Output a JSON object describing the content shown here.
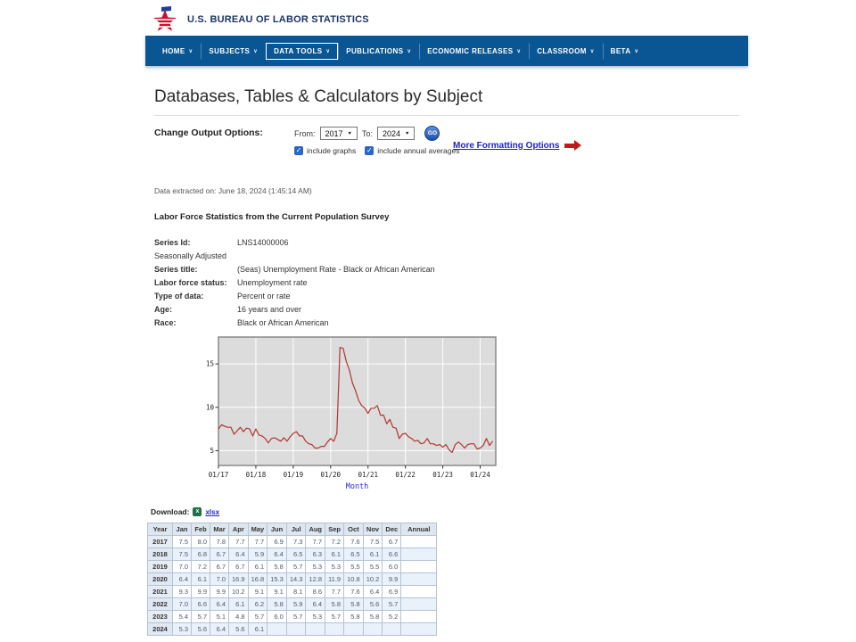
{
  "colors": {
    "nav_bg": "#0a5694",
    "brand_navy": "#1c3665",
    "link_blue": "#2121c8",
    "red_accent": "#c11b17",
    "chart_line": "#b13532",
    "chart_plot_bg": "#dcdcdc",
    "xlabel_blue": "#2a2ad0",
    "table_border": "#b5c3d4"
  },
  "header": {
    "site_title": "U.S. BUREAU OF LABOR STATISTICS"
  },
  "nav": {
    "active": "DATA TOOLS",
    "items": [
      {
        "label": "HOME"
      },
      {
        "label": "SUBJECTS"
      },
      {
        "label": "DATA TOOLS"
      },
      {
        "label": "PUBLICATIONS"
      },
      {
        "label": "ECONOMIC RELEASES"
      },
      {
        "label": "CLASSROOM"
      },
      {
        "label": "BETA"
      }
    ]
  },
  "page": {
    "title": "Databases, Tables & Calculators by Subject"
  },
  "output_options": {
    "label": "Change Output Options:",
    "from_label": "From:",
    "from_value": "2017",
    "to_label": "To:",
    "to_value": "2024",
    "go_label": "GO",
    "checkboxes": [
      {
        "label": "include graphs",
        "checked": true
      },
      {
        "label": "include annual averages",
        "checked": true
      }
    ],
    "more_link": "More Formatting Options"
  },
  "extracted": "Data extracted on: June 18, 2024 (1:45:14 AM)",
  "survey_title": "Labor Force Statistics from the Current Population Survey",
  "series": {
    "rows": [
      {
        "label": "Series Id:",
        "value": "LNS14000006",
        "bold": true
      },
      {
        "label": "Seasonally Adjusted",
        "value": "",
        "bold": false
      },
      {
        "label": "Series title:",
        "value": "(Seas) Unemployment Rate - Black or African American",
        "bold": true
      },
      {
        "label": "Labor force status:",
        "value": "Unemployment rate",
        "bold": true
      },
      {
        "label": "Type of data:",
        "value": "Percent or rate",
        "bold": true
      },
      {
        "label": "Age:",
        "value": "16 years and over",
        "bold": true
      },
      {
        "label": "Race:",
        "value": "Black or African American",
        "bold": true
      }
    ]
  },
  "chart_data": {
    "type": "line",
    "title": "(Seas) Unemployment Rate - Black or African American",
    "xlabel": "Month",
    "ylabel": "",
    "x_start": "2017-01",
    "x_ticks": [
      "01/17",
      "01/18",
      "01/19",
      "01/20",
      "01/21",
      "01/22",
      "01/23",
      "01/24"
    ],
    "y_ticks": [
      5,
      10,
      15
    ],
    "ylim": [
      3.3,
      18.1
    ],
    "grid": true,
    "legend": "none",
    "values": [
      7.5,
      8.0,
      7.8,
      7.7,
      7.7,
      6.9,
      7.3,
      7.7,
      7.2,
      7.6,
      7.5,
      6.7,
      7.5,
      6.8,
      6.7,
      6.4,
      5.9,
      6.4,
      6.5,
      6.3,
      6.1,
      6.5,
      6.1,
      6.6,
      7.0,
      7.2,
      6.7,
      6.7,
      6.1,
      5.8,
      5.7,
      5.3,
      5.3,
      5.5,
      5.5,
      6.0,
      6.4,
      6.1,
      7.0,
      16.9,
      16.8,
      15.3,
      14.3,
      12.8,
      11.9,
      10.8,
      10.2,
      9.9,
      9.3,
      9.9,
      9.9,
      10.2,
      9.1,
      9.1,
      8.1,
      8.6,
      7.7,
      7.6,
      6.4,
      6.9,
      7.0,
      6.6,
      6.4,
      6.1,
      6.2,
      5.8,
      5.9,
      6.4,
      5.8,
      5.8,
      5.6,
      5.7,
      5.4,
      5.7,
      5.1,
      4.8,
      5.7,
      6.0,
      5.7,
      5.3,
      5.7,
      5.8,
      5.8,
      5.2,
      5.3,
      5.6,
      6.4,
      5.6,
      6.1
    ]
  },
  "download": {
    "label": "Download:",
    "link_label": "xlsx"
  },
  "table": {
    "headers": [
      "Year",
      "Jan",
      "Feb",
      "Mar",
      "Apr",
      "May",
      "Jun",
      "Jul",
      "Aug",
      "Sep",
      "Oct",
      "Nov",
      "Dec",
      "Annual"
    ],
    "rows": [
      {
        "year": "2017",
        "months": [
          "7.5",
          "8.0",
          "7.8",
          "7.7",
          "7.7",
          "6.9",
          "7.3",
          "7.7",
          "7.2",
          "7.6",
          "7.5",
          "6.7"
        ],
        "annual": ""
      },
      {
        "year": "2018",
        "months": [
          "7.5",
          "6.8",
          "6.7",
          "6.4",
          "5.9",
          "6.4",
          "6.5",
          "6.3",
          "6.1",
          "6.5",
          "6.1",
          "6.6"
        ],
        "annual": ""
      },
      {
        "year": "2019",
        "months": [
          "7.0",
          "7.2",
          "6.7",
          "6.7",
          "6.1",
          "5.8",
          "5.7",
          "5.3",
          "5.3",
          "5.5",
          "5.5",
          "6.0"
        ],
        "annual": ""
      },
      {
        "year": "2020",
        "months": [
          "6.4",
          "6.1",
          "7.0",
          "16.9",
          "16.8",
          "15.3",
          "14.3",
          "12.8",
          "11.9",
          "10.8",
          "10.2",
          "9.9"
        ],
        "annual": ""
      },
      {
        "year": "2021",
        "months": [
          "9.3",
          "9.9",
          "9.9",
          "10.2",
          "9.1",
          "9.1",
          "8.1",
          "8.6",
          "7.7",
          "7.6",
          "6.4",
          "6.9"
        ],
        "annual": ""
      },
      {
        "year": "2022",
        "months": [
          "7.0",
          "6.6",
          "6.4",
          "6.1",
          "6.2",
          "5.8",
          "5.9",
          "6.4",
          "5.8",
          "5.8",
          "5.6",
          "5.7"
        ],
        "annual": ""
      },
      {
        "year": "2023",
        "months": [
          "5.4",
          "5.7",
          "5.1",
          "4.8",
          "5.7",
          "6.0",
          "5.7",
          "5.3",
          "5.7",
          "5.8",
          "5.8",
          "5.2"
        ],
        "annual": ""
      },
      {
        "year": "2024",
        "months": [
          "5.3",
          "5.6",
          "6.4",
          "5.6",
          "6.1",
          "",
          "",
          "",
          "",
          "",
          "",
          ""
        ],
        "annual": ""
      }
    ]
  }
}
